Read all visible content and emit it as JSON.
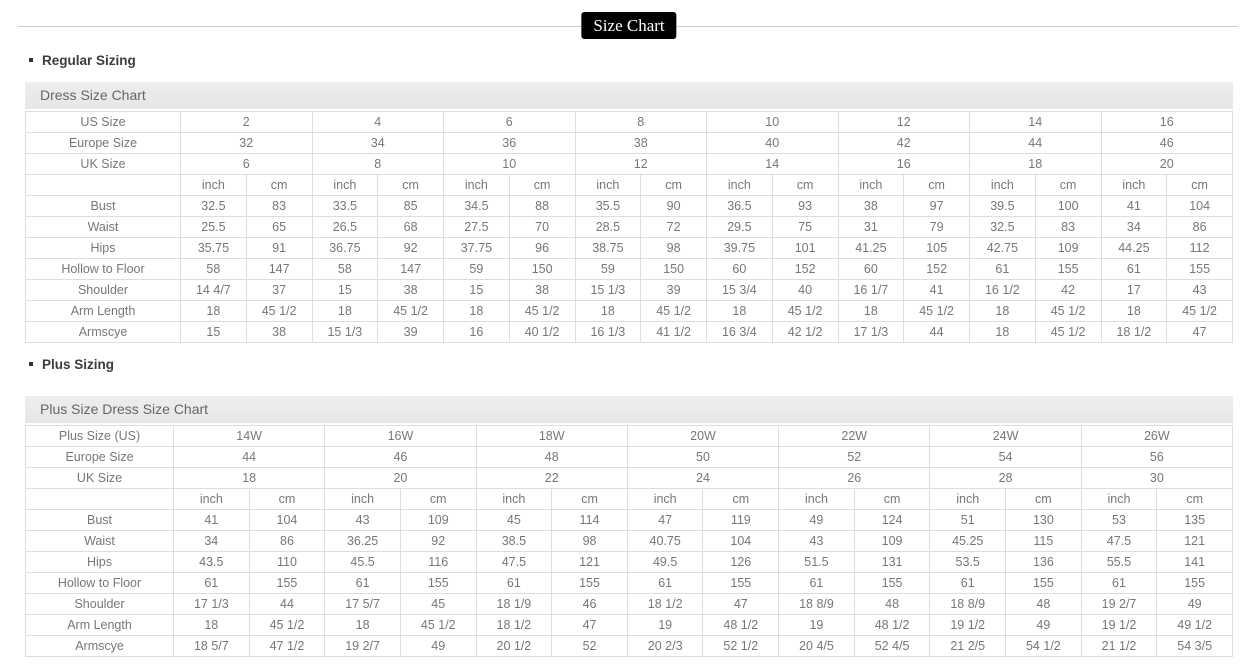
{
  "page": {
    "title": "Size Chart"
  },
  "sections": [
    {
      "heading": "Regular Sizing",
      "chart": {
        "title": "Dress Size Chart",
        "unit_labels": [
          "inch",
          "cm"
        ],
        "size_header_rows": [
          {
            "label": "US Size",
            "values": [
              "2",
              "4",
              "6",
              "8",
              "10",
              "12",
              "14",
              "16"
            ]
          },
          {
            "label": "Europe Size",
            "values": [
              "32",
              "34",
              "36",
              "38",
              "40",
              "42",
              "44",
              "46"
            ]
          },
          {
            "label": "UK Size",
            "values": [
              "6",
              "8",
              "10",
              "12",
              "14",
              "16",
              "18",
              "20"
            ]
          }
        ],
        "measurement_rows": [
          {
            "label": "Bust",
            "values": [
              "32.5",
              "83",
              "33.5",
              "85",
              "34.5",
              "88",
              "35.5",
              "90",
              "36.5",
              "93",
              "38",
              "97",
              "39.5",
              "100",
              "41",
              "104"
            ]
          },
          {
            "label": "Waist",
            "values": [
              "25.5",
              "65",
              "26.5",
              "68",
              "27.5",
              "70",
              "28.5",
              "72",
              "29.5",
              "75",
              "31",
              "79",
              "32.5",
              "83",
              "34",
              "86"
            ]
          },
          {
            "label": "Hips",
            "values": [
              "35.75",
              "91",
              "36.75",
              "92",
              "37.75",
              "96",
              "38.75",
              "98",
              "39.75",
              "101",
              "41.25",
              "105",
              "42.75",
              "109",
              "44.25",
              "112"
            ]
          },
          {
            "label": "Hollow to Floor",
            "values": [
              "58",
              "147",
              "58",
              "147",
              "59",
              "150",
              "59",
              "150",
              "60",
              "152",
              "60",
              "152",
              "61",
              "155",
              "61",
              "155"
            ]
          },
          {
            "label": "Shoulder",
            "values": [
              "14 4/7",
              "37",
              "15",
              "38",
              "15",
              "38",
              "15 1/3",
              "39",
              "15 3/4",
              "40",
              "16 1/7",
              "41",
              "16 1/2",
              "42",
              "17",
              "43"
            ]
          },
          {
            "label": "Arm Length",
            "values": [
              "18",
              "45 1/2",
              "18",
              "45 1/2",
              "18",
              "45 1/2",
              "18",
              "45 1/2",
              "18",
              "45 1/2",
              "18",
              "45 1/2",
              "18",
              "45 1/2",
              "18",
              "45 1/2"
            ]
          },
          {
            "label": "Armscye",
            "values": [
              "15",
              "38",
              "15 1/3",
              "39",
              "16",
              "40 1/2",
              "16 1/3",
              "41 1/2",
              "16 3/4",
              "42 1/2",
              "17 1/3",
              "44",
              "18",
              "45 1/2",
              "18 1/2",
              "47"
            ]
          }
        ]
      }
    },
    {
      "heading": "Plus Sizing",
      "chart": {
        "title": "Plus Size Dress Size Chart",
        "unit_labels": [
          "inch",
          "cm"
        ],
        "size_header_rows": [
          {
            "label": "Plus Size (US)",
            "values": [
              "14W",
              "16W",
              "18W",
              "20W",
              "22W",
              "24W",
              "26W"
            ]
          },
          {
            "label": "Europe Size",
            "values": [
              "44",
              "46",
              "48",
              "50",
              "52",
              "54",
              "56"
            ]
          },
          {
            "label": "UK Size",
            "values": [
              "18",
              "20",
              "22",
              "24",
              "26",
              "28",
              "30"
            ]
          }
        ],
        "measurement_rows": [
          {
            "label": "Bust",
            "values": [
              "41",
              "104",
              "43",
              "109",
              "45",
              "114",
              "47",
              "119",
              "49",
              "124",
              "51",
              "130",
              "53",
              "135"
            ]
          },
          {
            "label": "Waist",
            "values": [
              "34",
              "86",
              "36.25",
              "92",
              "38.5",
              "98",
              "40.75",
              "104",
              "43",
              "109",
              "45.25",
              "115",
              "47.5",
              "121"
            ]
          },
          {
            "label": "Hips",
            "values": [
              "43.5",
              "110",
              "45.5",
              "116",
              "47.5",
              "121",
              "49.5",
              "126",
              "51.5",
              "131",
              "53.5",
              "136",
              "55.5",
              "141"
            ]
          },
          {
            "label": "Hollow to Floor",
            "values": [
              "61",
              "155",
              "61",
              "155",
              "61",
              "155",
              "61",
              "155",
              "61",
              "155",
              "61",
              "155",
              "61",
              "155"
            ]
          },
          {
            "label": "Shoulder",
            "values": [
              "17 1/3",
              "44",
              "17 5/7",
              "45",
              "18 1/9",
              "46",
              "18 1/2",
              "47",
              "18 8/9",
              "48",
              "18 8/9",
              "48",
              "19 2/7",
              "49"
            ]
          },
          {
            "label": "Arm Length",
            "values": [
              "18",
              "45 1/2",
              "18",
              "45 1/2",
              "18 1/2",
              "47",
              "19",
              "48 1/2",
              "19",
              "48 1/2",
              "19 1/2",
              "49",
              "19 1/2",
              "49 1/2"
            ]
          },
          {
            "label": "Armscye",
            "values": [
              "18 5/7",
              "47 1/2",
              "19 2/7",
              "49",
              "20 1/2",
              "52",
              "20 2/3",
              "52 1/2",
              "20 4/5",
              "52 4/5",
              "21 2/5",
              "54 1/2",
              "21 1/2",
              "54 3/5"
            ]
          }
        ]
      }
    }
  ]
}
